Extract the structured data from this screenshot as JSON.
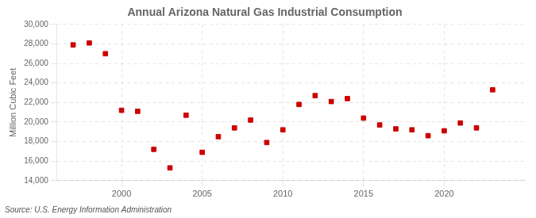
{
  "chart_data": {
    "type": "scatter",
    "title": "Annual Arizona Natural Gas Industrial Consumption",
    "ylabel": "Million Cubic Feet",
    "annotation": "Source: U.S. Energy Information Administration",
    "x": [
      1997,
      1998,
      1999,
      2000,
      2001,
      2002,
      2003,
      2004,
      2005,
      2006,
      2007,
      2008,
      2009,
      2010,
      2011,
      2012,
      2013,
      2014,
      2015,
      2016,
      2017,
      2018,
      2019,
      2020,
      2021,
      2022,
      2023
    ],
    "values": [
      27900,
      28100,
      27000,
      21200,
      21100,
      17200,
      15300,
      20700,
      16900,
      18500,
      19400,
      20200,
      17900,
      19200,
      21800,
      22700,
      22100,
      22400,
      20400,
      19700,
      19300,
      19200,
      18600,
      19100,
      19900,
      19400,
      23300
    ],
    "color": "#cc0000",
    "marker": "square",
    "xlim": [
      1996,
      2025
    ],
    "xticks": [
      2000,
      2005,
      2010,
      2015,
      2020
    ],
    "ylim": [
      14000,
      30000
    ],
    "yticks": [
      {
        "value": 14000,
        "label": "14,000"
      },
      {
        "value": 16000,
        "label": "16,000"
      },
      {
        "value": 18000,
        "label": "18,000"
      },
      {
        "value": 20000,
        "label": "20,000"
      },
      {
        "value": 22000,
        "label": "22,000"
      },
      {
        "value": 24000,
        "label": "24,000"
      },
      {
        "value": 26000,
        "label": "26,000"
      },
      {
        "value": 28000,
        "label": "28,000"
      },
      {
        "value": 30000,
        "label": "30,000"
      }
    ],
    "grid": true
  }
}
